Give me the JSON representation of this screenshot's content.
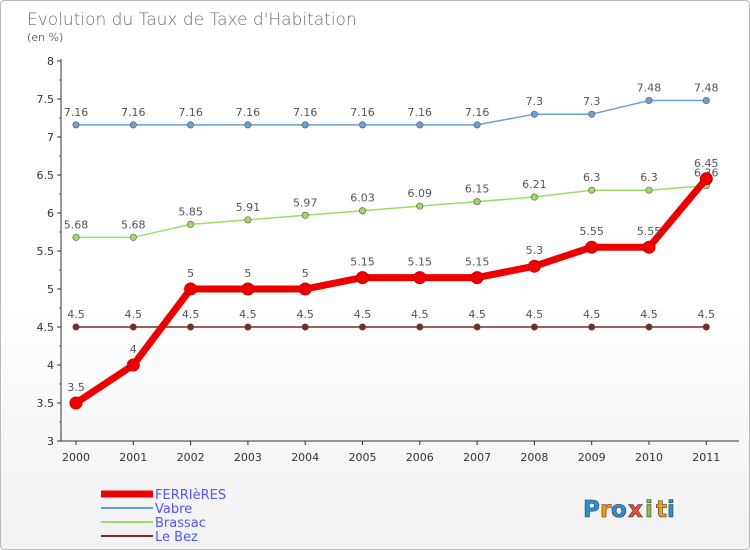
{
  "chart_data": {
    "type": "line",
    "title": "Evolution du Taux de Taxe d'Habitation",
    "subtitle": "(en %)",
    "xlabel": "",
    "ylabel": "",
    "x": [
      "2000",
      "2001",
      "2002",
      "2003",
      "2004",
      "2005",
      "2006",
      "2007",
      "2008",
      "2009",
      "2010",
      "2011"
    ],
    "ylim": [
      3,
      8
    ],
    "yticks": [
      3,
      3.5,
      4,
      4.5,
      5,
      5.5,
      6,
      6.5,
      7,
      7.5,
      8
    ],
    "ytick_labels": [
      "3",
      "3.5",
      "4",
      "4.5",
      "5",
      "5.5",
      "6",
      "6.5",
      "7",
      "7.5",
      "8"
    ],
    "grid": false,
    "legend_position": "bottom-left",
    "series": [
      {
        "name": "Vabre",
        "color": "#6aa1d1",
        "values": [
          7.16,
          7.16,
          7.16,
          7.16,
          7.16,
          7.16,
          7.16,
          7.16,
          7.3,
          7.3,
          7.48,
          7.48
        ],
        "labels": [
          "7.16",
          "7.16",
          "7.16",
          "7.16",
          "7.16",
          "7.16",
          "7.16",
          "7.16",
          "7.3",
          "7.3",
          "7.48",
          "7.48"
        ]
      },
      {
        "name": "Brassac",
        "color": "#99dd66",
        "values": [
          5.68,
          5.68,
          5.85,
          5.91,
          5.97,
          6.03,
          6.09,
          6.15,
          6.21,
          6.3,
          6.3,
          6.36
        ],
        "labels": [
          "5.68",
          "5.68",
          "5.85",
          "5.91",
          "5.97",
          "6.03",
          "6.09",
          "6.15",
          "6.21",
          "6.3",
          "6.3",
          "6.36"
        ]
      },
      {
        "name": "Le Bez",
        "color": "#7a2a2a",
        "values": [
          4.5,
          4.5,
          4.5,
          4.5,
          4.5,
          4.5,
          4.5,
          4.5,
          4.5,
          4.5,
          4.5,
          4.5
        ],
        "labels": [
          "4.5",
          "4.5",
          "4.5",
          "4.5",
          "4.5",
          "4.5",
          "4.5",
          "4.5",
          "4.5",
          "4.5",
          "4.5",
          "4.5"
        ]
      },
      {
        "name": "FERRIèRES",
        "color": "#ee0000",
        "values": [
          3.5,
          4,
          5,
          5,
          5,
          5.15,
          5.15,
          5.15,
          5.3,
          5.55,
          5.55,
          6.45
        ],
        "labels": [
          "3.5",
          "4",
          "5",
          "5",
          "5",
          "5.15",
          "5.15",
          "5.15",
          "5.3",
          "5.55",
          "5.55",
          "6.45"
        ]
      }
    ],
    "legend": [
      "FERRIèRES",
      "Vabre",
      "Brassac",
      "Le Bez"
    ]
  },
  "brand": {
    "letters": [
      "P",
      "r",
      "o",
      "x",
      "i",
      "t",
      "i"
    ],
    "colors": [
      "#2b8fd6",
      "#f39c12",
      "#2b8fd6",
      "#e74c3c",
      "#8cc63f",
      "#f39c12",
      "#2b8fd6"
    ]
  }
}
